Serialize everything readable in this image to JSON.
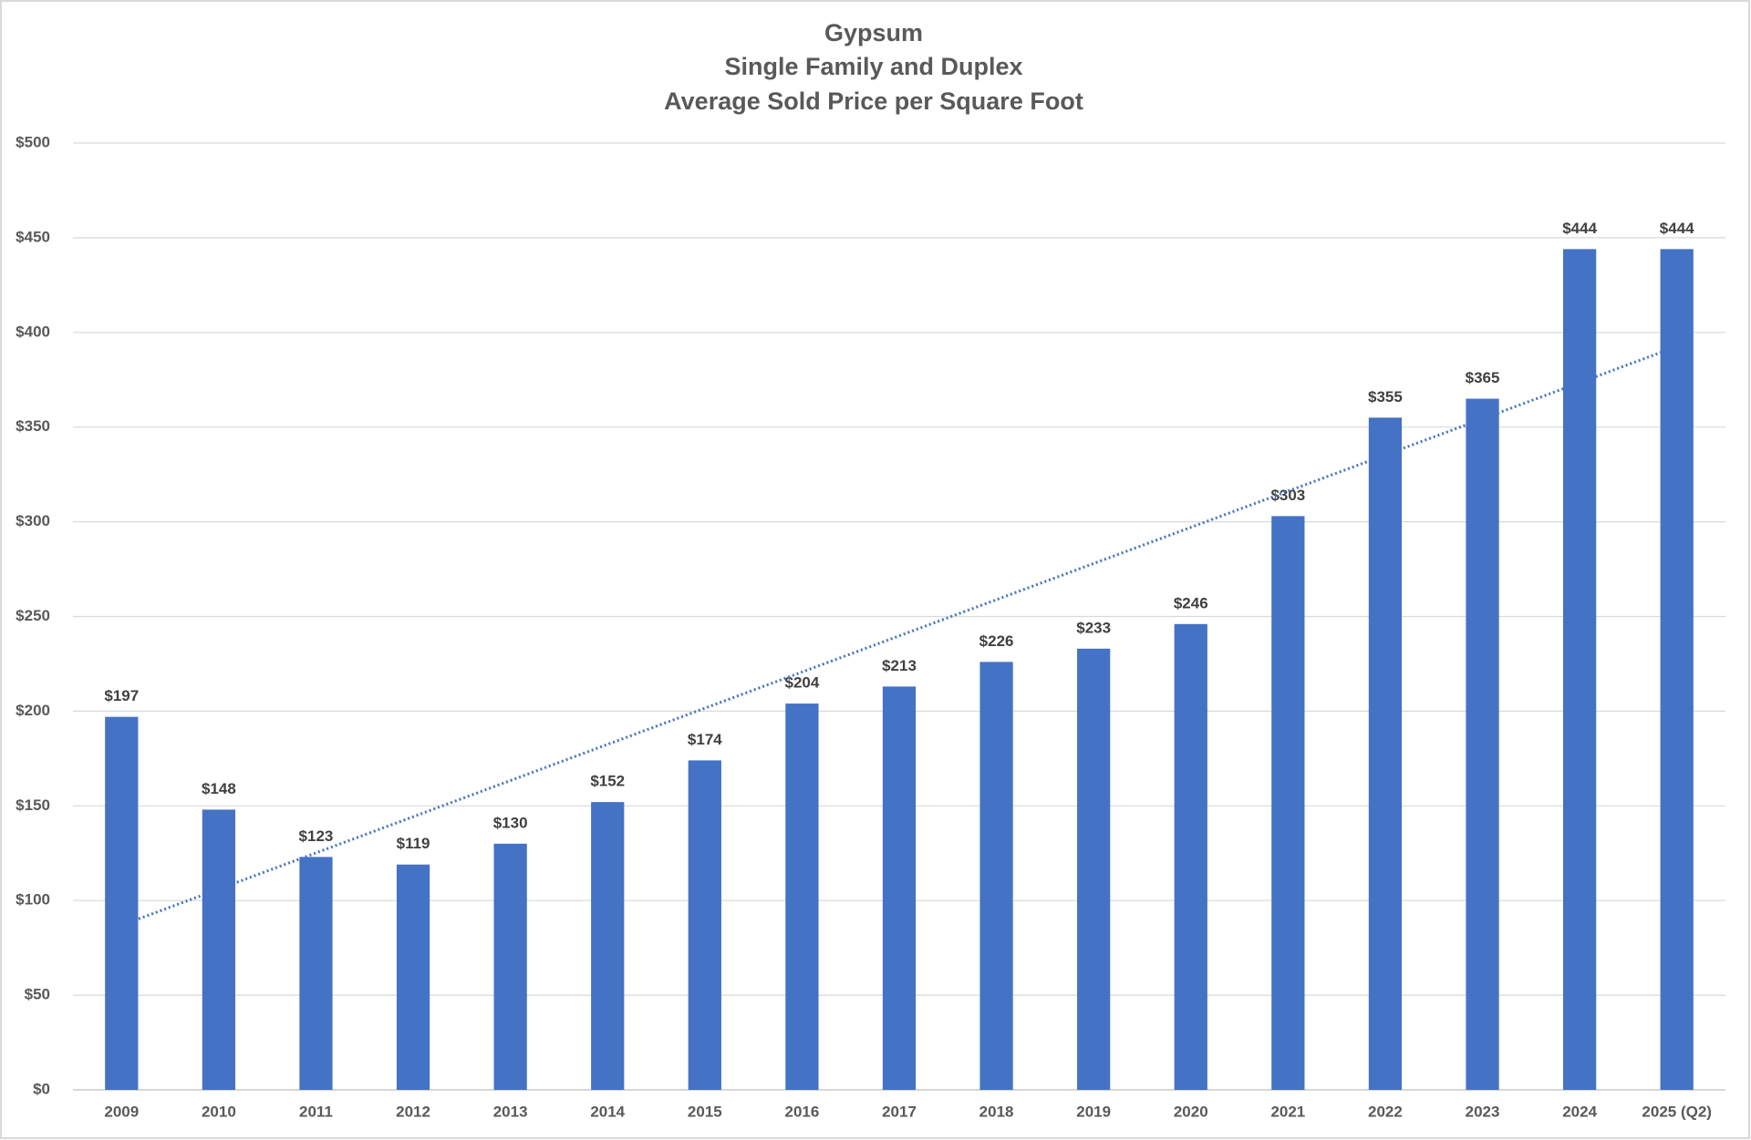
{
  "chart_data": {
    "type": "bar",
    "title": [
      "Gypsum",
      "Single Family and Duplex",
      "Average Sold Price per Square Foot"
    ],
    "categories": [
      "2009",
      "2010",
      "2011",
      "2012",
      "2013",
      "2014",
      "2015",
      "2016",
      "2017",
      "2018",
      "2019",
      "2020",
      "2021",
      "2022",
      "2023",
      "2024",
      "2025 (Q2)"
    ],
    "values": [
      197,
      148,
      123,
      119,
      130,
      152,
      174,
      204,
      213,
      226,
      233,
      246,
      303,
      355,
      365,
      444,
      444
    ],
    "value_labels": [
      "$197",
      "$148",
      "$123",
      "$119",
      "$130",
      "$152",
      "$174",
      "$204",
      "$213",
      "$226",
      "$233",
      "$246",
      "$303",
      "$355",
      "$365",
      "$444",
      "$444"
    ],
    "color": "#4472c4",
    "trendline": "linear",
    "ylim": [
      0,
      500
    ],
    "yticks": [
      {
        "value": 0,
        "label": "$0"
      },
      {
        "value": 50,
        "label": "$50"
      },
      {
        "value": 100,
        "label": "$100"
      },
      {
        "value": 150,
        "label": "$150"
      },
      {
        "value": 200,
        "label": "$200"
      },
      {
        "value": 250,
        "label": "$250"
      },
      {
        "value": 300,
        "label": "$300"
      },
      {
        "value": 350,
        "label": "$350"
      },
      {
        "value": 400,
        "label": "$400"
      },
      {
        "value": 450,
        "label": "$450"
      },
      {
        "value": 500,
        "label": "$500"
      }
    ],
    "grid": true
  }
}
